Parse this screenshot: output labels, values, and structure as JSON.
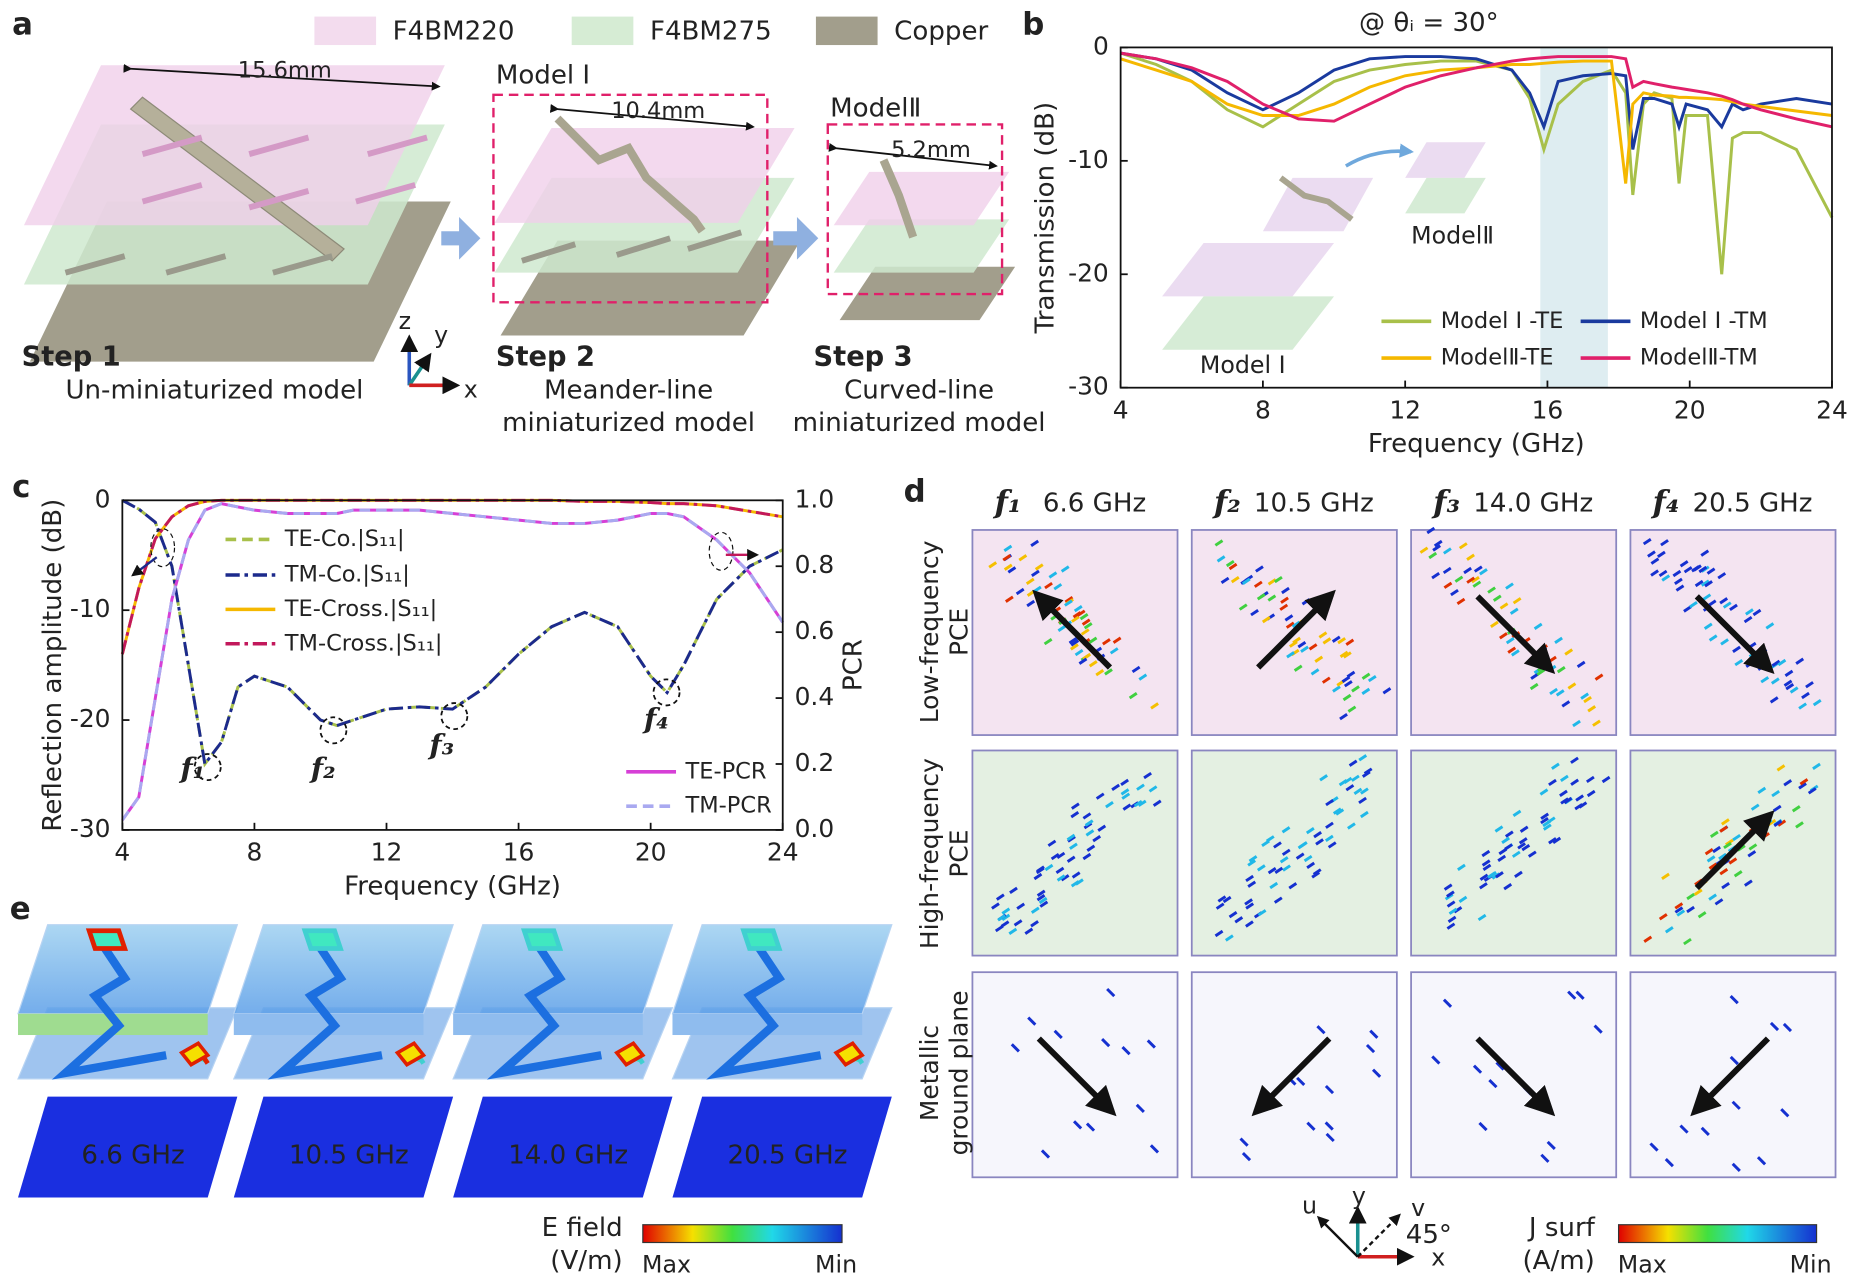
{
  "panel_labels": [
    "a",
    "b",
    "c",
    "d",
    "e"
  ],
  "panel_a": {
    "legend": [
      "F4BM220",
      "F4BM275",
      "Copper"
    ],
    "dimensions": [
      "15.6mm",
      "10.4mm",
      "5.2mm"
    ],
    "models": [
      "Model Ⅰ",
      "ModelⅡ"
    ],
    "steps": [
      {
        "title": "Step 1",
        "caption": [
          "Un-miniaturized model"
        ]
      },
      {
        "title": "Step 2",
        "caption": [
          "Meander-line",
          "miniaturized model"
        ]
      },
      {
        "title": "Step 3",
        "caption": [
          "Curved-line",
          "miniaturized model"
        ]
      }
    ],
    "axes": [
      "z",
      "y",
      "x"
    ]
  },
  "chart_data": [
    {
      "type": "line",
      "title": "@ θᵢ = 30°",
      "xlabel": "Frequency (GHz)",
      "ylabel": "Transmission (dB)",
      "x": [
        4,
        5,
        6,
        7,
        8,
        9,
        10,
        11,
        12,
        13,
        14,
        15,
        15.5,
        15.9,
        16.3,
        17,
        17.8,
        18.2,
        18.4,
        18.7,
        19,
        19.5,
        19.7,
        19.9,
        20.5,
        20.9,
        21.2,
        21.5,
        22,
        23,
        24
      ],
      "xlim": [
        4,
        24
      ],
      "xticks": [
        4,
        8,
        12,
        16,
        20,
        24
      ],
      "ylim": [
        -30,
        0
      ],
      "yticks": [
        0,
        -10,
        -20,
        -30
      ],
      "highlight_band": [
        15.8,
        17.7
      ],
      "band_color": "#d6e8ee",
      "annotations": [
        "ModelⅡ",
        "Model Ⅰ"
      ],
      "series": [
        {
          "name": "Model Ⅰ -TE",
          "color": "#a8c04a",
          "dash": "solid",
          "values": [
            -0.5,
            -1.5,
            -3,
            -5.5,
            -7,
            -5,
            -3,
            -2,
            -1.5,
            -1.2,
            -1.2,
            -2,
            -4.5,
            -9,
            -5,
            -3,
            -2,
            -4,
            -13,
            -5,
            -4,
            -4.5,
            -12,
            -6,
            -6,
            -20,
            -8,
            -7.5,
            -7.5,
            -9,
            -15
          ]
        },
        {
          "name": "Model Ⅰ -TM",
          "color": "#1a3a9e",
          "dash": "solid",
          "values": [
            -0.5,
            -1,
            -2,
            -4,
            -5.5,
            -4,
            -2,
            -1,
            -0.8,
            -0.8,
            -1,
            -2,
            -4,
            -7,
            -3,
            -2.5,
            -2.3,
            -2.5,
            -9,
            -4.5,
            -4.5,
            -5,
            -7,
            -5,
            -5.5,
            -7,
            -5,
            -5.5,
            -5,
            -4.5,
            -5
          ]
        },
        {
          "name": "ModelⅡ-TE",
          "color": "#f5b800",
          "dash": "solid",
          "values": [
            -1,
            -2,
            -3,
            -5,
            -6,
            -6,
            -5,
            -3.5,
            -2.5,
            -2,
            -1.8,
            -1.5,
            -1.5,
            -1.4,
            -1.3,
            -1.2,
            -1.2,
            -12,
            -5,
            -4,
            -4.2,
            -4.3,
            -4.4,
            -4.4,
            -4.5,
            -4.6,
            -4.8,
            -5,
            -5.2,
            -5.6,
            -6
          ]
        },
        {
          "name": "ModelⅡ-TM",
          "color": "#e0206a",
          "dash": "solid",
          "values": [
            -0.5,
            -1,
            -1.8,
            -3,
            -5,
            -6.3,
            -6.5,
            -5,
            -3.5,
            -2.5,
            -1.8,
            -1.2,
            -1,
            -0.9,
            -0.8,
            -0.8,
            -0.8,
            -1,
            -3.5,
            -3,
            -3.2,
            -3.5,
            -3.6,
            -3.7,
            -4,
            -4.3,
            -4.6,
            -5,
            -5.5,
            -6.3,
            -7
          ]
        }
      ]
    },
    {
      "type": "line",
      "xlabel": "Frequency (GHz)",
      "ylabel": "Reflection amplitude (dB)",
      "y2label": "PCR",
      "x": [
        4,
        4.5,
        5,
        5.5,
        6,
        6.5,
        7,
        7.5,
        8,
        9,
        10,
        10.5,
        11,
        12,
        13,
        14,
        15,
        16,
        17,
        18,
        19,
        20,
        20.5,
        21,
        22,
        23,
        24
      ],
      "xlim": [
        4,
        24
      ],
      "xticks": [
        4,
        8,
        12,
        16,
        20,
        24
      ],
      "ylim": [
        -30,
        0
      ],
      "yticks": [
        0,
        -10,
        -20,
        -30
      ],
      "y2lim": [
        0,
        1
      ],
      "y2ticks": [
        {
          "value": 0,
          "label": "0.0"
        },
        0.2,
        0.4,
        0.6,
        0.8,
        {
          "value": 1,
          "label": "1.0"
        }
      ],
      "y_axis_color": "#1c2a8c",
      "y2_axis_color": "#c0185a",
      "annotations": [
        "f₁",
        "f₂",
        "f₃",
        "f₄"
      ],
      "series": [
        {
          "name": "TE-Co.|S₁₁|",
          "color": "#a8c04a",
          "dash": "dashed",
          "values": [
            0,
            -0.8,
            -2,
            -6,
            -15,
            -24,
            -22,
            -17,
            -16,
            -17,
            -20,
            -20.5,
            -20,
            -19,
            -18.8,
            -19,
            -17,
            -14,
            -11.5,
            -10.2,
            -11.5,
            -16,
            -17.5,
            -15,
            -9,
            -6,
            -4.5
          ]
        },
        {
          "name": "TM-Co.|S₁₁|",
          "color": "#1c2a8c",
          "dash": "dashdot",
          "values": [
            0,
            -0.8,
            -2,
            -6,
            -15,
            -24,
            -22,
            -17,
            -16,
            -17,
            -20,
            -20.5,
            -20,
            -19,
            -18.8,
            -19,
            -17,
            -14,
            -11.5,
            -10.2,
            -11.5,
            -16,
            -17.5,
            -15,
            -9,
            -6,
            -4.5
          ]
        },
        {
          "name": "TE-Cross.|S₁₁|",
          "color": "#f5b800",
          "dash": "solid",
          "values": [
            -14,
            -8,
            -3.5,
            -1.5,
            -0.5,
            -0.1,
            0,
            0,
            0,
            0,
            0,
            0,
            0,
            0,
            0,
            0,
            0,
            0,
            0,
            -0.1,
            -0.1,
            -0.2,
            -0.3,
            -0.3,
            -0.5,
            -1,
            -1.5
          ]
        },
        {
          "name": "TM-Cross.|S₁₁|",
          "color": "#c2185b",
          "dash": "dashdot",
          "values": [
            -14,
            -8,
            -3.5,
            -1.5,
            -0.5,
            -0.1,
            0,
            0,
            0,
            0,
            0,
            0,
            0,
            0,
            0,
            0,
            0,
            0,
            0,
            -0.1,
            -0.1,
            -0.2,
            -0.3,
            -0.3,
            -0.5,
            -1,
            -1.5
          ]
        },
        {
          "name": "TE-PCR",
          "color": "#d63fd6",
          "dash": "solid",
          "axis": "y2",
          "values": [
            0.03,
            0.1,
            0.4,
            0.7,
            0.88,
            0.97,
            0.99,
            0.98,
            0.97,
            0.96,
            0.96,
            0.96,
            0.97,
            0.97,
            0.97,
            0.96,
            0.95,
            0.94,
            0.93,
            0.93,
            0.94,
            0.96,
            0.96,
            0.95,
            0.88,
            0.78,
            0.63
          ]
        },
        {
          "name": "TM-PCR",
          "color": "#a9a9f0",
          "dash": "dashed",
          "axis": "y2",
          "values": [
            0.03,
            0.1,
            0.4,
            0.7,
            0.88,
            0.97,
            0.99,
            0.98,
            0.97,
            0.96,
            0.96,
            0.96,
            0.97,
            0.97,
            0.97,
            0.96,
            0.95,
            0.94,
            0.93,
            0.93,
            0.94,
            0.96,
            0.96,
            0.95,
            0.88,
            0.78,
            0.63
          ]
        }
      ]
    }
  ],
  "panel_d": {
    "columns": [
      {
        "f": "f₁",
        "freq": "6.6 GHz"
      },
      {
        "f": "f₂",
        "freq": "10.5 GHz"
      },
      {
        "f": "f₃",
        "freq": "14.0 GHz"
      },
      {
        "f": "f₄",
        "freq": "20.5 GHz"
      }
    ],
    "rows": [
      [
        "Low-frequency",
        "PCE"
      ],
      [
        "High-frequency",
        "PCE"
      ],
      [
        "Metallic",
        "ground plane"
      ]
    ],
    "axes": [
      "u",
      "y",
      "v",
      "x"
    ],
    "angle": "45°",
    "colorbar": {
      "label": [
        "J surf",
        "(A/m)"
      ],
      "max": "Max",
      "min": "Min"
    }
  },
  "panel_e": {
    "labels": [
      "6.6 GHz",
      "10.5 GHz",
      "14.0 GHz",
      "20.5 GHz"
    ],
    "colorbar": {
      "label": [
        "E field",
        "(V/m)"
      ],
      "max": "Max",
      "min": "Min"
    }
  }
}
